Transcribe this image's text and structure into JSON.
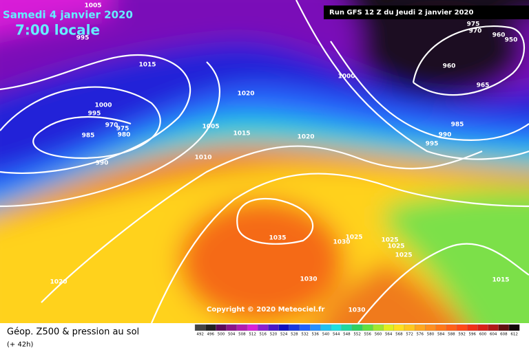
{
  "header": {
    "date": "Samedi 4 janvier 2020",
    "time": "7:00 locale",
    "run_info": "Run GFS 12 Z du Jeudi 2 janvier 2020",
    "copyright": "Copyright © 2020 Meteociel.fr"
  },
  "legend": {
    "title": "Géop. Z500 & pression au sol",
    "subtitle": "(+ 42h)",
    "scale": [
      492,
      496,
      500,
      504,
      508,
      512,
      516,
      520,
      524,
      528,
      532,
      536,
      540,
      544,
      548,
      552,
      556,
      560,
      564,
      568,
      572,
      576,
      580,
      584,
      588,
      592,
      596,
      600,
      604,
      608,
      612
    ]
  },
  "isobar_labels": [
    "1005",
    "995",
    "1015",
    "1000",
    "995",
    "970",
    "975",
    "985",
    "980",
    "990",
    "1020",
    "1005",
    "1015",
    "1010",
    "1020",
    "1000",
    "975",
    "970",
    "960",
    "950",
    "960",
    "965",
    "985",
    "990",
    "995",
    "1035",
    "1030",
    "1025",
    "1025",
    "1025",
    "1025",
    "1030",
    "1015",
    "1020",
    "1030"
  ]
}
